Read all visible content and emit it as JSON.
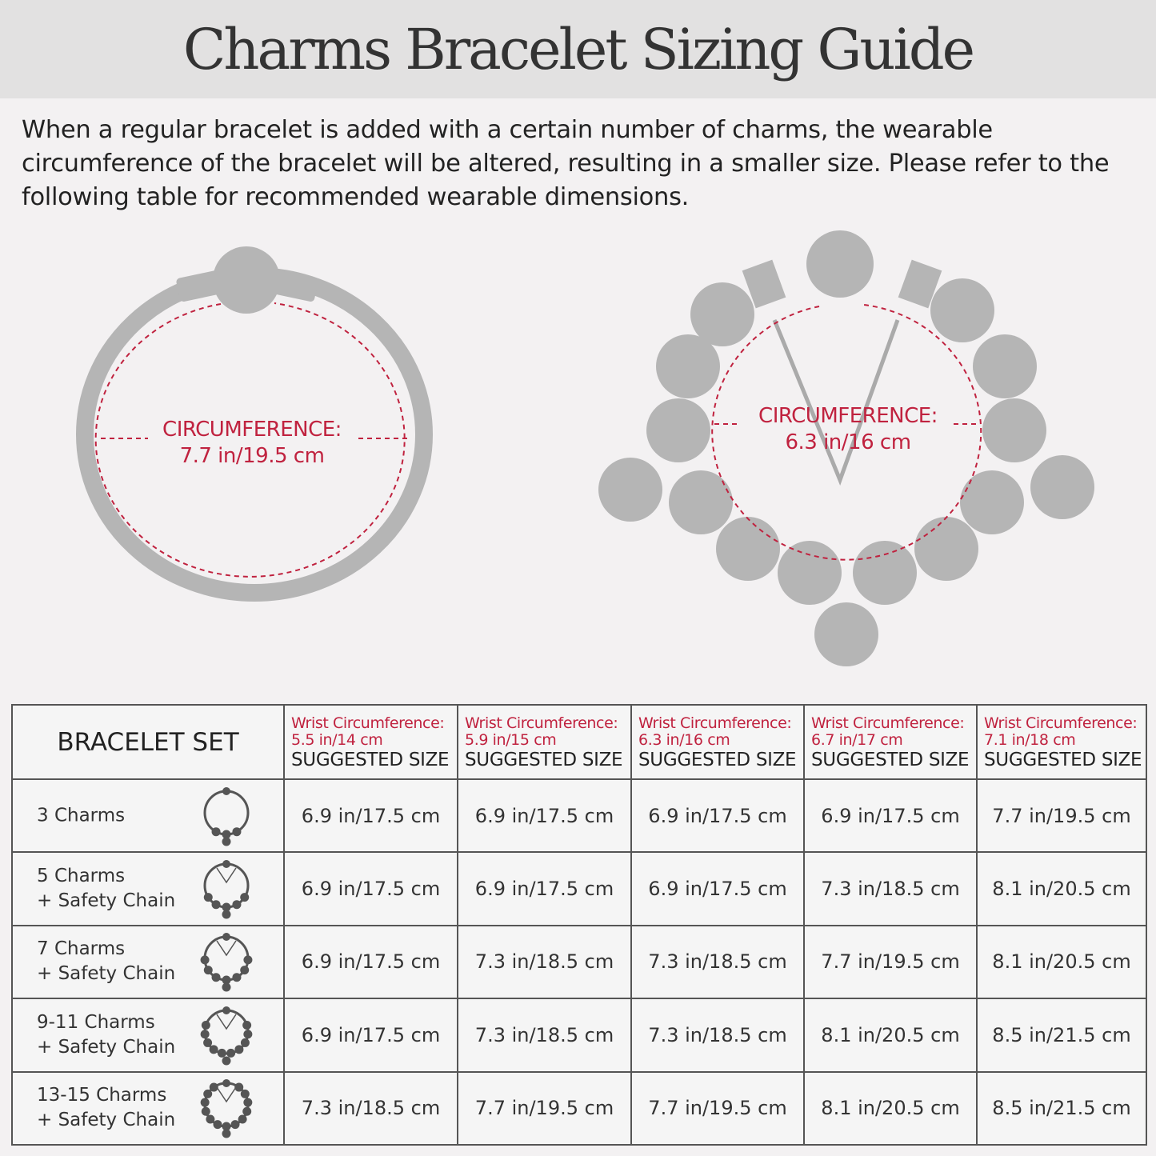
{
  "header": {
    "title": "Charms Bracelet Sizing Guide"
  },
  "intro": "When a regular bracelet is added with a certain number of charms, the wearable circumference of the bracelet will be altered, resulting in a smaller size. Please refer to the following table for recommended wearable dimensions.",
  "colors": {
    "accent": "#c0223f",
    "bead": "#b5b5b5",
    "header_band": "#e2e1e1",
    "background": "#f3f1f2"
  },
  "diagrams": [
    {
      "label": "CIRCUMFERENCE:",
      "value": "7.7 in/19.5 cm"
    },
    {
      "label": "CIRCUMFERENCE:",
      "value": "6.3 in/16 cm"
    }
  ],
  "table": {
    "set_header": "BRACELET SET",
    "columns": [
      {
        "wrist": "Wrist Circumference:",
        "wrist_value": "5.5 in/14 cm",
        "suggested": "SUGGESTED SIZE"
      },
      {
        "wrist": "Wrist Circumference:",
        "wrist_value": "5.9 in/15 cm",
        "suggested": "SUGGESTED SIZE"
      },
      {
        "wrist": "Wrist Circumference:",
        "wrist_value": "6.3 in/16 cm",
        "suggested": "SUGGESTED SIZE"
      },
      {
        "wrist": "Wrist Circumference:",
        "wrist_value": "6.7 in/17 cm",
        "suggested": "SUGGESTED SIZE"
      },
      {
        "wrist": "Wrist Circumference:",
        "wrist_value": "7.1 in/18 cm",
        "suggested": "SUGGESTED SIZE"
      }
    ],
    "rows": [
      {
        "line1": "3 Charms",
        "line2": "",
        "icon": "bracelet-3-charms-icon",
        "values": [
          "6.9 in/17.5 cm",
          "6.9 in/17.5 cm",
          "6.9 in/17.5 cm",
          "6.9 in/17.5 cm",
          "7.7 in/19.5 cm"
        ]
      },
      {
        "line1": "5 Charms",
        "line2": "+ Safety Chain",
        "icon": "bracelet-5-charms-icon",
        "values": [
          "6.9 in/17.5 cm",
          "6.9 in/17.5 cm",
          "6.9 in/17.5 cm",
          "7.3 in/18.5 cm",
          "8.1 in/20.5 cm"
        ]
      },
      {
        "line1": "7 Charms",
        "line2": "+ Safety Chain",
        "icon": "bracelet-7-charms-icon",
        "values": [
          "6.9 in/17.5 cm",
          "7.3 in/18.5 cm",
          "7.3 in/18.5 cm",
          "7.7 in/19.5 cm",
          "8.1 in/20.5 cm"
        ]
      },
      {
        "line1": "9-11 Charms",
        "line2": "+ Safety Chain",
        "icon": "bracelet-9-11-charms-icon",
        "values": [
          "6.9 in/17.5 cm",
          "7.3 in/18.5 cm",
          "7.3 in/18.5 cm",
          "8.1 in/20.5 cm",
          "8.5 in/21.5 cm"
        ]
      },
      {
        "line1": "13-15 Charms",
        "line2": "+ Safety Chain",
        "icon": "bracelet-13-15-charms-icon",
        "values": [
          "7.3 in/18.5 cm",
          "7.7 in/19.5 cm",
          "7.7 in/19.5 cm",
          "8.1 in/20.5 cm",
          "8.5 in/21.5 cm"
        ]
      }
    ]
  }
}
